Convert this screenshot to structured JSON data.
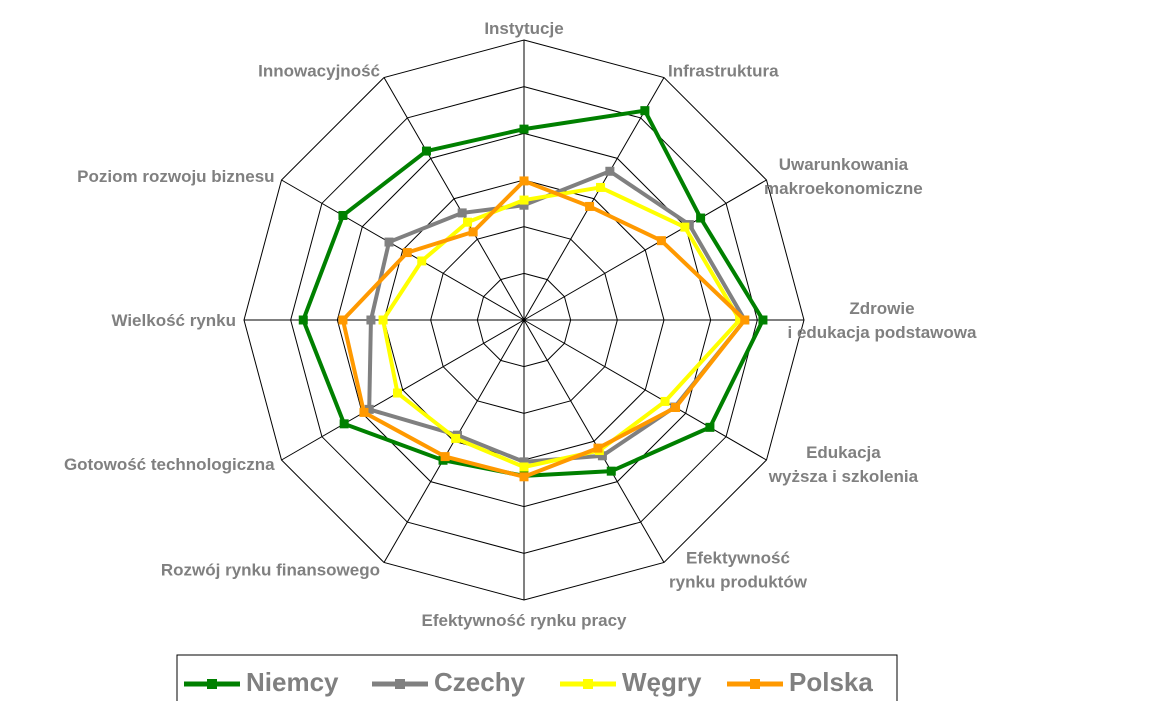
{
  "chart_data": {
    "type": "radar",
    "categories": [
      "Instytucje",
      "Infrastruktura",
      "Uwarunkowania makroekonomiczne",
      "Zdrowie i edukacja podstawowa",
      "Edukacja wyższa i szkolenia",
      "Efektywność rynku produktów",
      "Efektywność rynku pracy",
      "Rozwój rynku finansowego",
      "Gotowość technologiczna",
      "Wielkość rynku",
      "Poziom rozwoju biznesu",
      "Innowacyjność"
    ],
    "series": [
      {
        "name": "Niemcy",
        "color": "#008000",
        "values": [
          5.09,
          6.18,
          5.37,
          6.12,
          5.6,
          4.74,
          4.34,
          4.47,
          5.45,
          5.73,
          5.48,
          5.18
        ]
      },
      {
        "name": "Czechy",
        "color": "#808080",
        "values": [
          3.46,
          4.68,
          5.09,
          5.73,
          4.73,
          4.36,
          4.04,
          3.85,
          4.83,
          4.28,
          4.34,
          3.65
        ]
      },
      {
        "name": "Węgry",
        "color": "#ffff00",
        "values": [
          3.57,
          4.28,
          4.98,
          5.62,
          4.49,
          4.23,
          4.15,
          3.93,
          4.13,
          4.02,
          3.53,
          3.42
        ]
      },
      {
        "name": "Polska",
        "color": "#ff9900",
        "values": [
          3.98,
          3.81,
          4.4,
          5.73,
          4.75,
          4.17,
          4.36,
          4.38,
          4.96,
          4.88,
          3.89,
          3.18
        ]
      }
    ],
    "ylim": [
      1,
      7
    ],
    "yticks": [
      1,
      2,
      3,
      4,
      5,
      6,
      7
    ],
    "legend": "bottom"
  }
}
